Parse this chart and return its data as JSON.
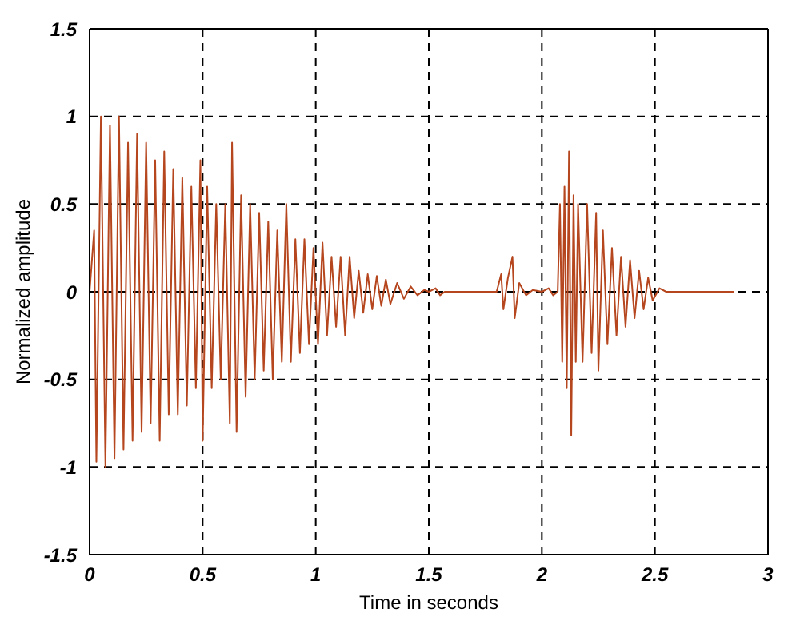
{
  "chart_data": {
    "type": "line",
    "xlabel": "Time in seconds",
    "ylabel": "Normalized amplitude",
    "xlim": [
      0,
      3
    ],
    "xticks": [
      0,
      0.5,
      1,
      1.5,
      2,
      2.5,
      3
    ],
    "ylim": [
      -1.5,
      1.5
    ],
    "yticks": [
      -1.5,
      -1,
      -0.5,
      0,
      0.5,
      1,
      1.5
    ],
    "grid": true,
    "marker": "none",
    "line_style": "solid",
    "series": [
      {
        "color": "#b5461e",
        "x": [
          0,
          0.02,
          0.03,
          0.05,
          0.07,
          0.09,
          0.11,
          0.13,
          0.15,
          0.17,
          0.19,
          0.21,
          0.23,
          0.25,
          0.27,
          0.29,
          0.31,
          0.33,
          0.35,
          0.37,
          0.39,
          0.41,
          0.43,
          0.45,
          0.47,
          0.49,
          0.5,
          0.52,
          0.54,
          0.56,
          0.58,
          0.6,
          0.62,
          0.63,
          0.65,
          0.67,
          0.69,
          0.71,
          0.73,
          0.75,
          0.77,
          0.79,
          0.81,
          0.83,
          0.85,
          0.87,
          0.89,
          0.91,
          0.93,
          0.95,
          0.97,
          0.99,
          1.01,
          1.03,
          1.05,
          1.07,
          1.09,
          1.11,
          1.13,
          1.15,
          1.17,
          1.19,
          1.21,
          1.23,
          1.25,
          1.27,
          1.29,
          1.31,
          1.33,
          1.36,
          1.39,
          1.42,
          1.45,
          1.48,
          1.5,
          1.53,
          1.55,
          1.57,
          1.65,
          1.75,
          1.8,
          1.82,
          1.83,
          1.85,
          1.87,
          1.88,
          1.9,
          1.93,
          1.96,
          2,
          2.03,
          2.05,
          2.07,
          2.08,
          2.09,
          2.1,
          2.11,
          2.12,
          2.13,
          2.14,
          2.15,
          2.16,
          2.18,
          2.2,
          2.22,
          2.24,
          2.25,
          2.27,
          2.29,
          2.31,
          2.33,
          2.35,
          2.37,
          2.39,
          2.41,
          2.43,
          2.45,
          2.47,
          2.49,
          2.52,
          2.55,
          2.7,
          2.85
        ],
        "values": [
          0,
          0.35,
          -0.97,
          1,
          -1,
          0.95,
          -0.95,
          1,
          -0.9,
          0.85,
          -0.85,
          0.9,
          -0.8,
          0.85,
          -0.75,
          0.75,
          -0.85,
          0.8,
          -0.7,
          0.7,
          -0.7,
          0.65,
          -0.65,
          0.6,
          -0.55,
          0.75,
          -0.85,
          0.6,
          -0.55,
          0.5,
          -0.5,
          0.5,
          -0.75,
          0.85,
          -0.8,
          0.55,
          -0.6,
          0.5,
          -0.5,
          0.45,
          -0.45,
          0.4,
          -0.5,
          0.35,
          -0.4,
          0.5,
          -0.4,
          0.3,
          -0.35,
          0.3,
          -0.3,
          0.25,
          -0.3,
          0.28,
          -0.25,
          0.2,
          -0.2,
          0.2,
          -0.25,
          0.2,
          -0.15,
          0.12,
          -0.12,
          0.1,
          -0.1,
          0.09,
          -0.08,
          0.07,
          -0.07,
          0.05,
          -0.04,
          0.03,
          -0.02,
          0.01,
          0,
          0.02,
          -0.02,
          0,
          0,
          0,
          0,
          0.1,
          -0.1,
          0.08,
          0.2,
          -0.15,
          0.05,
          -0.02,
          0.01,
          0,
          0.02,
          -0.02,
          0,
          0.5,
          -0.4,
          0.6,
          -0.55,
          0.8,
          -0.82,
          0.55,
          -0.4,
          0.5,
          -0.4,
          0.5,
          -0.35,
          0.45,
          -0.45,
          0.35,
          -0.3,
          0.25,
          -0.25,
          0.2,
          -0.2,
          0.18,
          -0.15,
          0.12,
          -0.1,
          0.08,
          -0.05,
          0.02,
          0,
          0,
          0
        ]
      }
    ]
  }
}
